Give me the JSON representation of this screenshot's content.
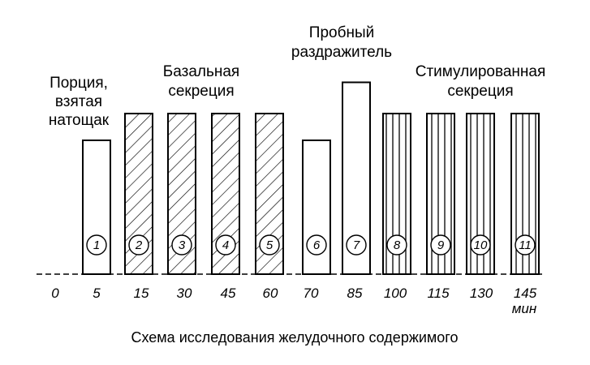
{
  "chart_data": {
    "type": "bar",
    "caption": "Схема исследования желудочного содержимого",
    "unit": "мин",
    "x_ticks": [
      "0",
      "5",
      "15",
      "30",
      "45",
      "60",
      "70",
      "85",
      "100",
      "115",
      "130",
      "145"
    ],
    "portions": [
      {
        "label": "1",
        "group": "fasting",
        "pattern": "plain",
        "height": 0.6
      },
      {
        "label": "2",
        "group": "basal",
        "pattern": "diagonal",
        "height": 0.72
      },
      {
        "label": "3",
        "group": "basal",
        "pattern": "diagonal",
        "height": 0.72
      },
      {
        "label": "4",
        "group": "basal",
        "pattern": "diagonal",
        "height": 0.72
      },
      {
        "label": "5",
        "group": "basal",
        "pattern": "diagonal",
        "height": 0.72
      },
      {
        "label": "6",
        "group": "test",
        "pattern": "plain",
        "height": 0.6
      },
      {
        "label": "7",
        "group": "test",
        "pattern": "plain",
        "height": 0.86
      },
      {
        "label": "8",
        "group": "stimulated",
        "pattern": "vertical",
        "height": 0.72
      },
      {
        "label": "9",
        "group": "stimulated",
        "pattern": "vertical",
        "height": 0.72
      },
      {
        "label": "10",
        "group": "stimulated",
        "pattern": "vertical",
        "height": 0.72
      },
      {
        "label": "11",
        "group": "stimulated",
        "pattern": "vertical",
        "height": 0.72
      }
    ],
    "annotations": {
      "fasting": [
        "Порция,",
        "взятая",
        "натощак"
      ],
      "basal": [
        "Базальная",
        "секреция"
      ],
      "test": [
        "Пробный",
        "раздражитель"
      ],
      "stimulated": [
        "Стимулированная",
        "секреция"
      ]
    }
  }
}
